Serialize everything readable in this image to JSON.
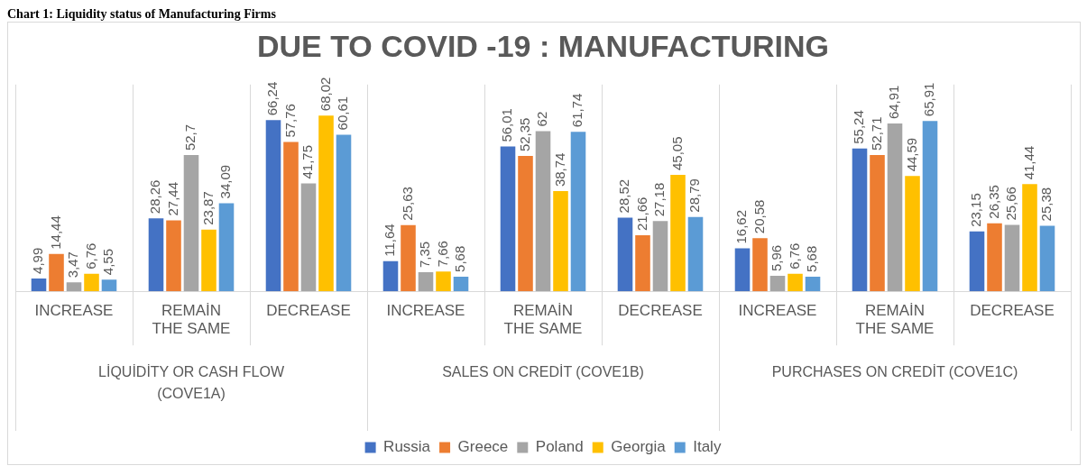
{
  "chart_data": {
    "type": "bar",
    "title": "DUE TO COVID -19 : MANUFACTURING",
    "categories": [
      "INCREASE",
      "REMAİN THE SAME",
      "DECREASE",
      "INCREASE",
      "REMAİN THE SAME",
      "DECREASE",
      "INCREASE",
      "REMAİN THE SAME",
      "DECREASE"
    ],
    "annotations": [
      "Chart 1: Liquidity status of Manufacturing Firms",
      "LİQUİDİTY OR CASH FLOW (COVE1A)",
      "SALES ON CREDİT (COVE1B)",
      "PURCHASES ON CREDİT (COVE1C)"
    ],
    "series": [
      {
        "name": "Russia",
        "color": "#4472c4",
        "values": [
          4.99,
          28.26,
          66.24,
          11.64,
          56.01,
          28.52,
          16.62,
          55.24,
          23.15
        ],
        "value_labels": [
          "4,99",
          "28,26",
          "66,24",
          "11,64",
          "56,01",
          "28,52",
          "16,62",
          "55,24",
          "23,15"
        ]
      },
      {
        "name": "Greece",
        "color": "#ed7d31",
        "values": [
          14.44,
          27.44,
          57.76,
          25.63,
          52.35,
          21.66,
          20.58,
          52.71,
          26.35
        ],
        "value_labels": [
          "14,44",
          "27,44",
          "57,76",
          "25,63",
          "52,35",
          "21,66",
          "20,58",
          "52,71",
          "26,35"
        ]
      },
      {
        "name": "Poland",
        "color": "#a5a5a5",
        "values": [
          3.47,
          52.7,
          41.75,
          7.35,
          62,
          27.18,
          5.96,
          64.91,
          25.66
        ],
        "value_labels": [
          "3,47",
          "52,7",
          "41,75",
          "7,35",
          "62",
          "27,18",
          "5,96",
          "64,91",
          "25,66"
        ]
      },
      {
        "name": "Georgia",
        "color": "#ffc000",
        "values": [
          6.76,
          23.87,
          68.02,
          7.66,
          38.74,
          45.05,
          6.76,
          44.59,
          41.44
        ],
        "value_labels": [
          "6,76",
          "23,87",
          "68,02",
          "7,66",
          "38,74",
          "45,05",
          "6,76",
          "44,59",
          "41,44"
        ]
      },
      {
        "name": "Italy",
        "color": "#5b9bd5",
        "values": [
          4.55,
          34.09,
          60.61,
          5.68,
          61.74,
          28.79,
          5.68,
          65.91,
          25.38
        ],
        "value_labels": [
          "4,55",
          "34,09",
          "60,61",
          "5,68",
          "61,74",
          "28,79",
          "5,68",
          "65,91",
          "25,38"
        ]
      }
    ],
    "legend": "bottom"
  }
}
